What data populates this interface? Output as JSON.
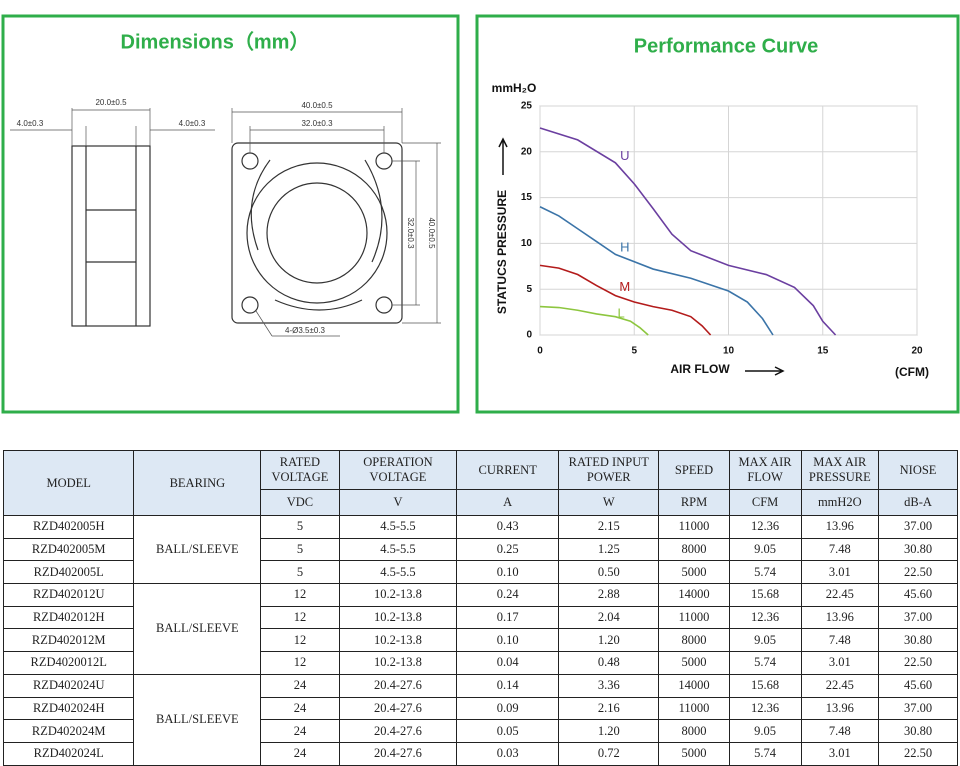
{
  "dimensions": {
    "title": "Dimensions（mm）",
    "labels": [
      "20.0±0.5",
      "4.0±0.3",
      "4.0±0.3",
      "40.0±0.5",
      "32.0±0.3",
      "32.0±0.3",
      "40.0±0.5",
      "4-Ø3.5±0.3"
    ]
  },
  "chart_data": {
    "type": "line",
    "title": "Performance Curve",
    "y_unit": "mmH₂O",
    "y_label": "STATUCS PRESSURE",
    "x_label": "AIR FLOW",
    "x_unit": "(CFM)",
    "xlim": [
      0,
      20
    ],
    "xticks": [
      0,
      5,
      10,
      15,
      20
    ],
    "ylim": [
      0,
      25
    ],
    "yticks": [
      0,
      5,
      10,
      15,
      20,
      25
    ],
    "grid": true,
    "series": [
      {
        "name": "U",
        "color": "#6b3fa0",
        "x": [
          0,
          2,
          4,
          5,
          6,
          7,
          8,
          10,
          12,
          13.5,
          14.5,
          15,
          15.68
        ],
        "values": [
          22.6,
          21.3,
          18.8,
          16.5,
          13.8,
          11,
          9.2,
          7.6,
          6.6,
          5.2,
          3.2,
          1.5,
          0
        ]
      },
      {
        "name": "H",
        "color": "#3b74a8",
        "x": [
          0,
          1,
          2,
          3,
          4,
          6,
          8,
          10,
          11,
          11.8,
          12.36
        ],
        "values": [
          14,
          13,
          11.6,
          10.2,
          8.8,
          7.2,
          6.2,
          4.8,
          3.6,
          1.8,
          0
        ]
      },
      {
        "name": "M",
        "color": "#b31b1b",
        "x": [
          0,
          1,
          2,
          3,
          4,
          5,
          6,
          7,
          8,
          8.6,
          9.05
        ],
        "values": [
          7.6,
          7.3,
          6.6,
          5.4,
          4.3,
          3.6,
          3.1,
          2.7,
          2,
          1,
          0
        ]
      },
      {
        "name": "L",
        "color": "#8dc63f",
        "x": [
          0,
          1,
          2,
          3,
          4,
          4.8,
          5.3,
          5.74
        ],
        "values": [
          3.1,
          3,
          2.7,
          2.3,
          2,
          1.5,
          0.8,
          0
        ]
      }
    ]
  },
  "table": {
    "header": [
      "MODEL",
      "BEARING",
      "RATED VOLTAGE",
      "OPERATION VOLTAGE",
      "CURRENT",
      "RATED INPUT POWER",
      "SPEED",
      "MAX AIR FLOW",
      "MAX AIR PRESSURE",
      "NIOSE"
    ],
    "units": [
      "VDC",
      "V",
      "A",
      "W",
      "RPM",
      "CFM",
      "mmH2O",
      "dB-A"
    ],
    "groups": [
      {
        "bearing": "BALL/SLEEVE",
        "rows": [
          [
            "RZD402005H",
            "5",
            "4.5-5.5",
            "0.43",
            "2.15",
            "11000",
            "12.36",
            "13.96",
            "37.00"
          ],
          [
            "RZD402005M",
            "5",
            "4.5-5.5",
            "0.25",
            "1.25",
            "8000",
            "9.05",
            "7.48",
            "30.80"
          ],
          [
            "RZD402005L",
            "5",
            "4.5-5.5",
            "0.10",
            "0.50",
            "5000",
            "5.74",
            "3.01",
            "22.50"
          ]
        ]
      },
      {
        "bearing": "BALL/SLEEVE",
        "rows": [
          [
            "RZD402012U",
            "12",
            "10.2-13.8",
            "0.24",
            "2.88",
            "14000",
            "15.68",
            "22.45",
            "45.60"
          ],
          [
            "RZD402012H",
            "12",
            "10.2-13.8",
            "0.17",
            "2.04",
            "11000",
            "12.36",
            "13.96",
            "37.00"
          ],
          [
            "RZD402012M",
            "12",
            "10.2-13.8",
            "0.10",
            "1.20",
            "8000",
            "9.05",
            "7.48",
            "30.80"
          ],
          [
            "RZD4020012L",
            "12",
            "10.2-13.8",
            "0.04",
            "0.48",
            "5000",
            "5.74",
            "3.01",
            "22.50"
          ]
        ]
      },
      {
        "bearing": "BALL/SLEEVE",
        "rows": [
          [
            "RZD402024U",
            "24",
            "20.4-27.6",
            "0.14",
            "3.36",
            "14000",
            "15.68",
            "22.45",
            "45.60"
          ],
          [
            "RZD402024H",
            "24",
            "20.4-27.6",
            "0.09",
            "2.16",
            "11000",
            "12.36",
            "13.96",
            "37.00"
          ],
          [
            "RZD402024M",
            "24",
            "20.4-27.6",
            "0.05",
            "1.20",
            "8000",
            "9.05",
            "7.48",
            "30.80"
          ],
          [
            "RZD402024L",
            "24",
            "20.4-27.6",
            "0.03",
            "0.72",
            "5000",
            "5.74",
            "3.01",
            "22.50"
          ]
        ]
      }
    ]
  }
}
